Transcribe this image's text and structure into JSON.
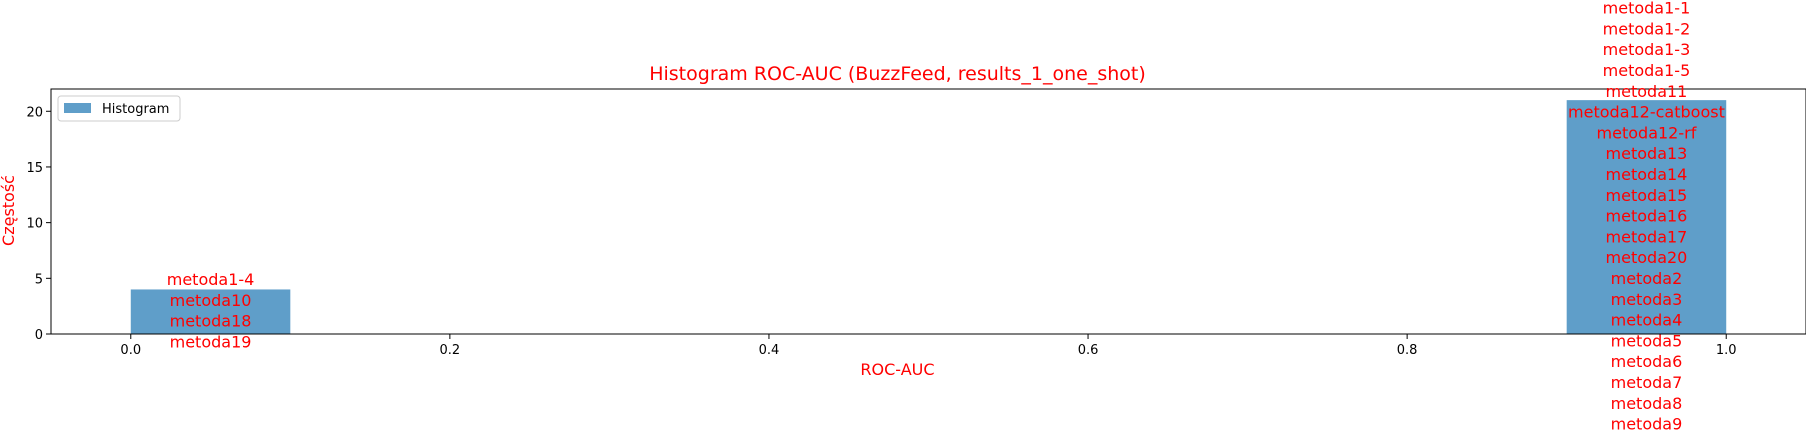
{
  "chart_data": {
    "type": "bar",
    "title": "Histogram ROC-AUC (BuzzFeed, results_1_one_shot)",
    "xlabel": "ROC-AUC",
    "ylabel": "Częstość",
    "xlim": [
      -0.05,
      1.05
    ],
    "ylim": [
      0,
      22
    ],
    "x_ticks": [
      "0.0",
      "0.2",
      "0.4",
      "0.6",
      "0.8",
      "1.0"
    ],
    "y_ticks": [
      "0",
      "5",
      "10",
      "15",
      "20"
    ],
    "grid": false,
    "legend": {
      "entries": [
        "Histogram"
      ],
      "placement": "upper-left"
    },
    "colors": {
      "bar": "#5f9ec9",
      "label": "#ff0000",
      "axis": "#000000"
    },
    "series": [
      {
        "name": "Histogram",
        "bins": [
          {
            "x0": 0.0,
            "x1": 0.1,
            "count": 4,
            "labels": [
              "metoda1-4",
              "metoda10",
              "metoda18",
              "metoda19"
            ]
          },
          {
            "x0": 0.9,
            "x1": 1.0,
            "count": 21,
            "labels": [
              "metoda1-1",
              "metoda1-2",
              "metoda1-3",
              "metoda1-5",
              "metoda11",
              "metoda12-catboost",
              "metoda12-rf",
              "metoda13",
              "metoda14",
              "metoda15",
              "metoda16",
              "metoda17",
              "metoda20",
              "metoda2",
              "metoda3",
              "metoda4",
              "metoda5",
              "metoda6",
              "metoda7",
              "metoda8",
              "metoda9"
            ]
          }
        ]
      }
    ]
  }
}
